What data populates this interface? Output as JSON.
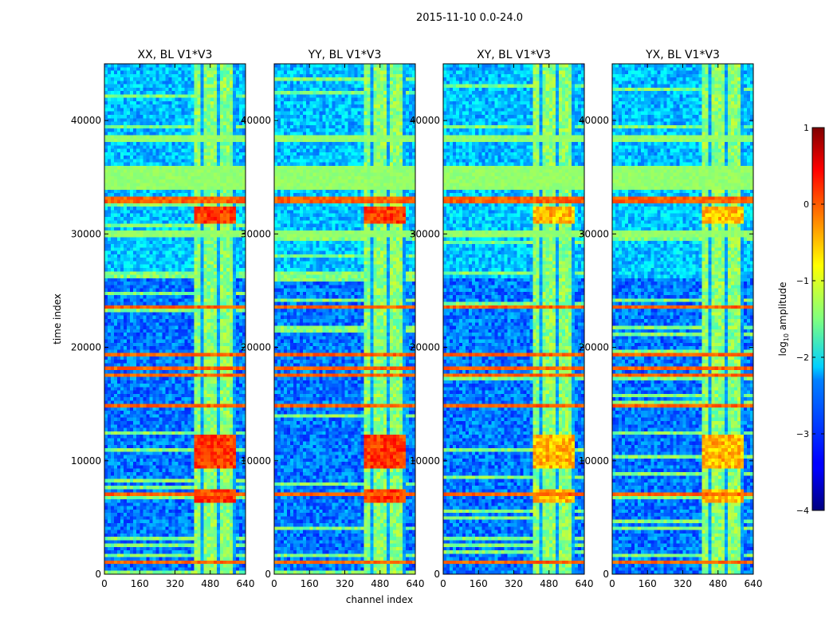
{
  "figure": {
    "suptitle": "2015-11-10 0.0-24.0"
  },
  "chart_data": {
    "type": "heatmap",
    "panels": [
      {
        "title": "XX, BL V1*V3"
      },
      {
        "title": "YY, BL V1*V3"
      },
      {
        "title": "XY, BL V1*V3"
      },
      {
        "title": "YX, BL V1*V3"
      }
    ],
    "xlabel": "channel index",
    "ylabel": "time index",
    "xlim": [
      0,
      640
    ],
    "ylim": [
      0,
      45000
    ],
    "xticks": [
      0,
      160,
      320,
      480,
      640
    ],
    "xtick_labels": [
      "0",
      "160",
      "320",
      "480",
      "640"
    ],
    "yticks": [
      0,
      10000,
      20000,
      30000,
      40000
    ],
    "ytick_labels": [
      "0",
      "10000",
      "20000",
      "30000",
      "40000"
    ],
    "colorbar": {
      "label": "log10 amplitude",
      "range": [
        -4,
        1
      ],
      "ticks": [
        1,
        0,
        -1,
        -2,
        -3,
        -4
      ],
      "tick_labels": [
        "1",
        "0",
        "−1",
        "−2",
        "−3",
        "−4"
      ],
      "colormap": "jet"
    },
    "features": {
      "bright_channel_band": [
        405,
        600
      ],
      "saturated_time_bands": [
        [
          34000,
          36000
        ],
        [
          38000,
          38700
        ],
        [
          29800,
          30200
        ]
      ],
      "high_rows": [
        [
          32800,
          33300
        ],
        [
          17300,
          17800
        ],
        [
          17900,
          18400
        ],
        [
          19300,
          19600
        ],
        [
          23300,
          23700
        ],
        [
          14800,
          15100
        ],
        [
          800,
          1200
        ],
        [
          6900,
          7300
        ]
      ],
      "strong_blocks": [
        [
          31000,
          32500
        ],
        [
          9300,
          12200
        ],
        [
          6400,
          7400
        ]
      ]
    },
    "colors": {
      "jet_dark_blue": "#00007f",
      "jet_blue": "#0000ff",
      "jet_cyan": "#00ffff",
      "jet_yellow": "#ffff00",
      "jet_red": "#ff0000",
      "jet_dark_red": "#7f0000"
    }
  }
}
